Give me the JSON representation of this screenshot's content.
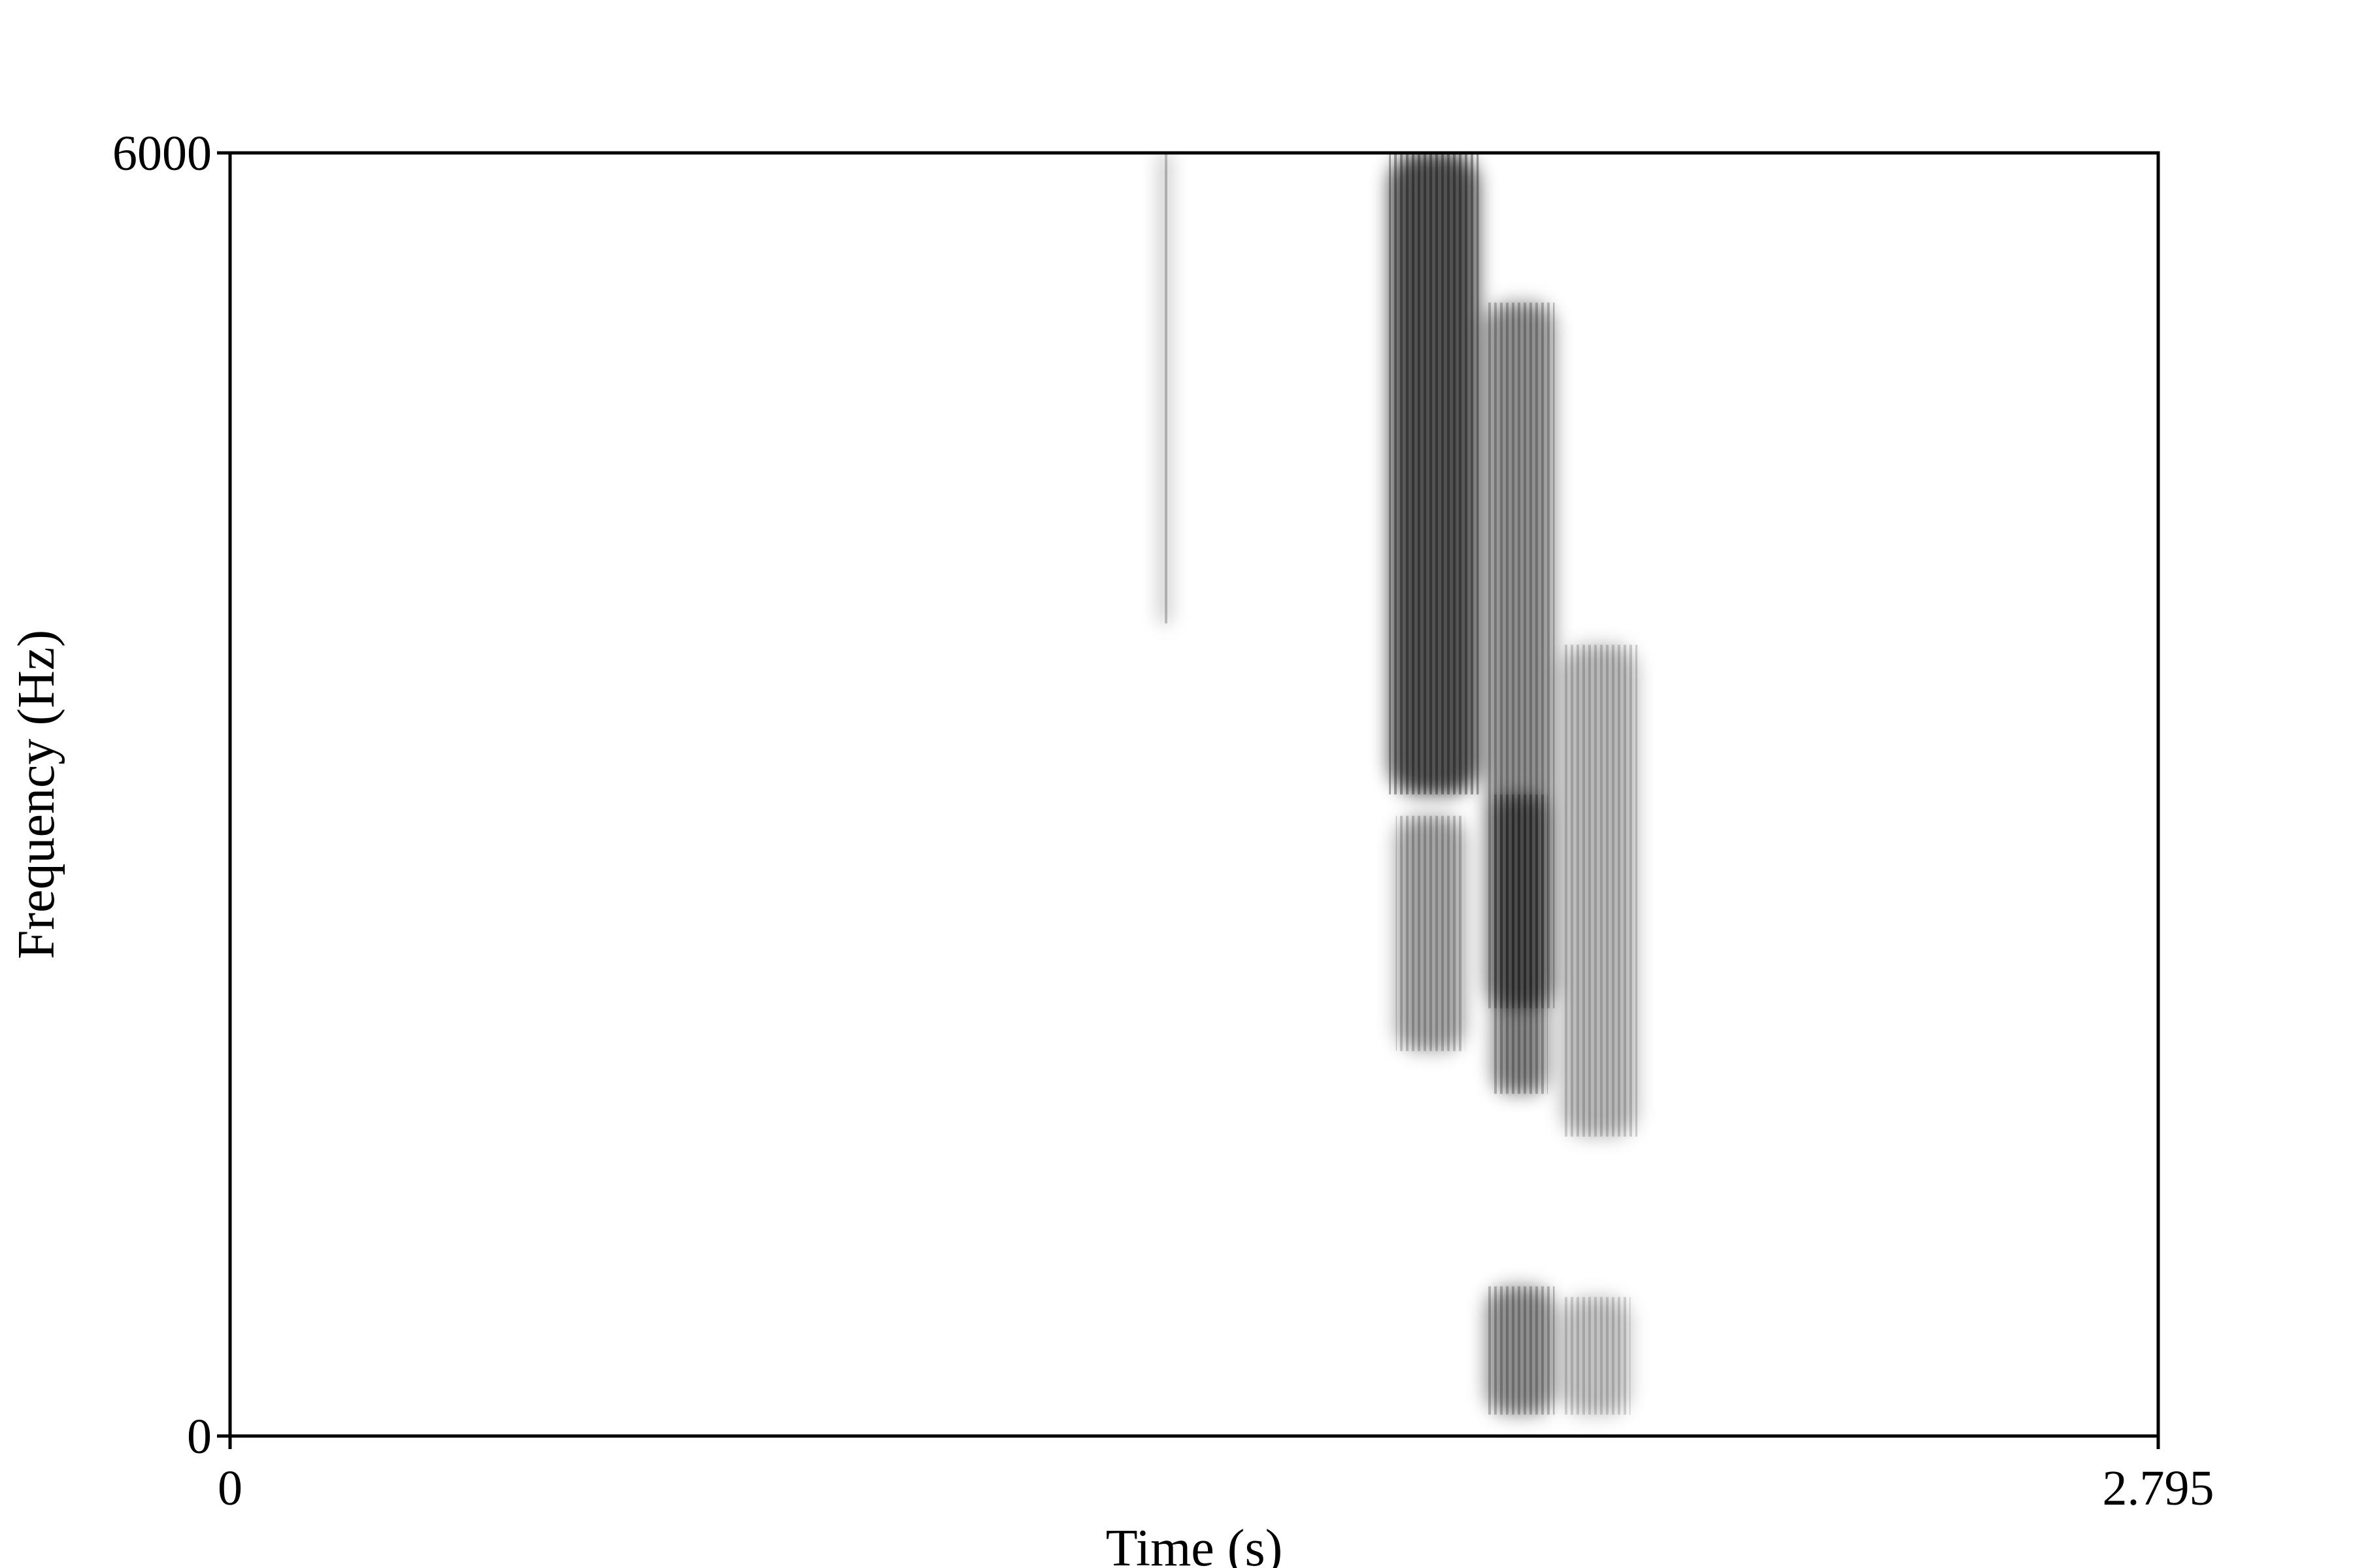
{
  "chart_data": {
    "type": "heatmap",
    "title": "",
    "xlabel": "Time (s)",
    "ylabel": "Frequency (Hz)",
    "xlim": [
      0,
      2.795
    ],
    "ylim": [
      0,
      6000
    ],
    "x_ticks": [
      {
        "value": 0,
        "label": "0"
      },
      {
        "value": 2.795,
        "label": "2.795"
      }
    ],
    "y_ticks": [
      {
        "value": 0,
        "label": "0"
      },
      {
        "value": 6000,
        "label": "6000"
      }
    ],
    "colormap": "grayscale (white = low energy, black = high energy)",
    "grid": false,
    "energy_regions": [
      {
        "t_start": 1.68,
        "t_end": 1.81,
        "f_low": 3000,
        "f_high": 6000,
        "intensity": 0.85
      },
      {
        "t_start": 1.82,
        "t_end": 1.92,
        "f_low": 2000,
        "f_high": 5300,
        "intensity": 0.55
      },
      {
        "t_start": 1.69,
        "t_end": 1.79,
        "f_low": 1800,
        "f_high": 2900,
        "intensity": 0.45
      },
      {
        "t_start": 1.83,
        "t_end": 1.91,
        "f_low": 1600,
        "f_high": 3000,
        "intensity": 0.6
      },
      {
        "t_start": 1.93,
        "t_end": 2.04,
        "f_low": 1400,
        "f_high": 3700,
        "intensity": 0.35
      },
      {
        "t_start": 1.82,
        "t_end": 1.92,
        "f_low": 100,
        "f_high": 700,
        "intensity": 0.55
      },
      {
        "t_start": 1.93,
        "t_end": 2.03,
        "f_low": 100,
        "f_high": 650,
        "intensity": 0.3
      },
      {
        "t_start": 1.35,
        "t_end": 1.36,
        "f_low": 3800,
        "f_high": 6000,
        "intensity": 0.5
      }
    ]
  }
}
